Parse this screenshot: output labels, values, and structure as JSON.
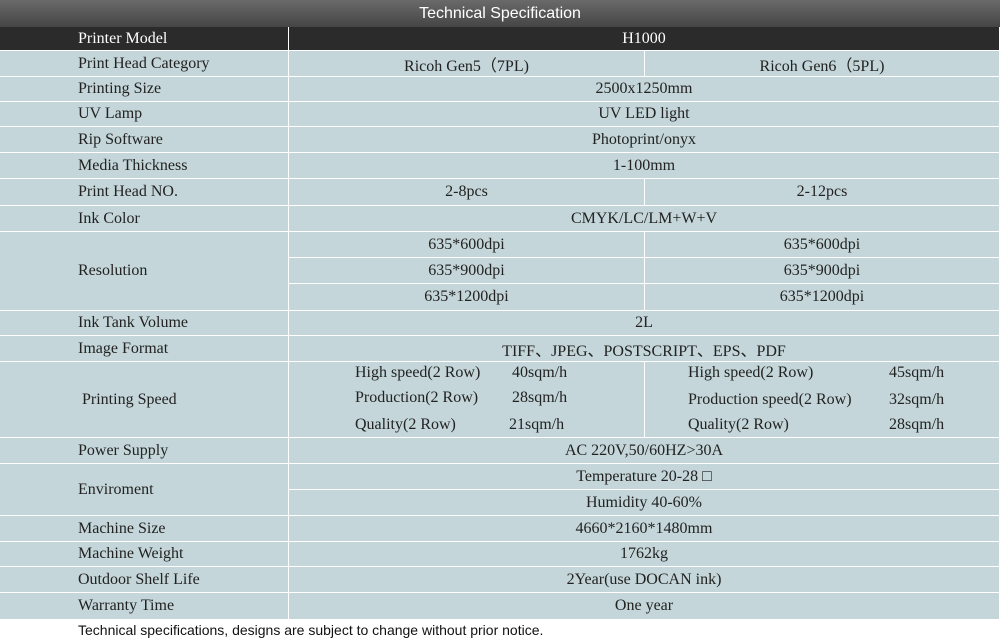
{
  "title": "Technical Specification",
  "rows": [
    {
      "label": "Printer Model",
      "value": "H1000"
    },
    {
      "label": "Print Head Category",
      "left": "Ricoh Gen5（7PL)",
      "right": "Ricoh Gen6（5PL)"
    },
    {
      "label": "Printing Size",
      "value": "2500x1250mm"
    },
    {
      "label": "UV Lamp",
      "value": "UV LED light"
    },
    {
      "label": "Rip Software",
      "value": "Photoprint/onyx"
    },
    {
      "label": "Media Thickness",
      "value": "1-100mm"
    },
    {
      "label": "Print Head NO.",
      "left": "2-8pcs",
      "right": "2-12pcs"
    },
    {
      "label": "Ink Color",
      "value": "CMYK/LC/LM+W+V"
    },
    {
      "label": "Resolution",
      "left": [
        "635*600dpi",
        "635*900dpi",
        "635*1200dpi"
      ],
      "right": [
        "635*600dpi",
        "635*900dpi",
        "635*1200dpi"
      ]
    },
    {
      "label": "Ink Tank Volume",
      "value": "2L"
    },
    {
      "label": "Image Format",
      "value": "TIFF、JPEG、POSTSCRIPT、EPS、PDF"
    },
    {
      "label": "Printing Speed",
      "left": [
        {
          "mode": "High speed(2 Row)",
          "speed": "40sqm/h"
        },
        {
          "mode": "Production(2 Row)",
          "speed": "28sqm/h"
        },
        {
          "mode": "Quality(2 Row)",
          "speed": "21sqm/h"
        }
      ],
      "right": [
        {
          "mode": "High speed(2 Row)",
          "speed": "45sqm/h"
        },
        {
          "mode": "Production speed(2 Row)",
          "speed": "32sqm/h"
        },
        {
          "mode": "Quality(2 Row)",
          "speed": "28sqm/h"
        }
      ]
    },
    {
      "label": "Power Supply",
      "value": "AC 220V,50/60HZ>30A"
    },
    {
      "label": "Enviroment",
      "values": [
        "Temperature 20-28 □",
        "Humidity 40-60%"
      ]
    },
    {
      "label": "Machine Size",
      "value": "4660*2160*1480mm"
    },
    {
      "label": "Machine Weight",
      "value": "1762kg"
    },
    {
      "label": "Outdoor Shelf Life",
      "value": "2Year(use DOCAN ink)"
    },
    {
      "label": "Warranty Time",
      "value": "One year"
    }
  ],
  "footnote": "Technical specifications, designs are subject to change without prior notice.",
  "colors": {
    "header_bg": "#4f4f4f",
    "dark_row": "#2b2b2b",
    "cell_bg": "#c4d6d9",
    "text": "#222222"
  }
}
